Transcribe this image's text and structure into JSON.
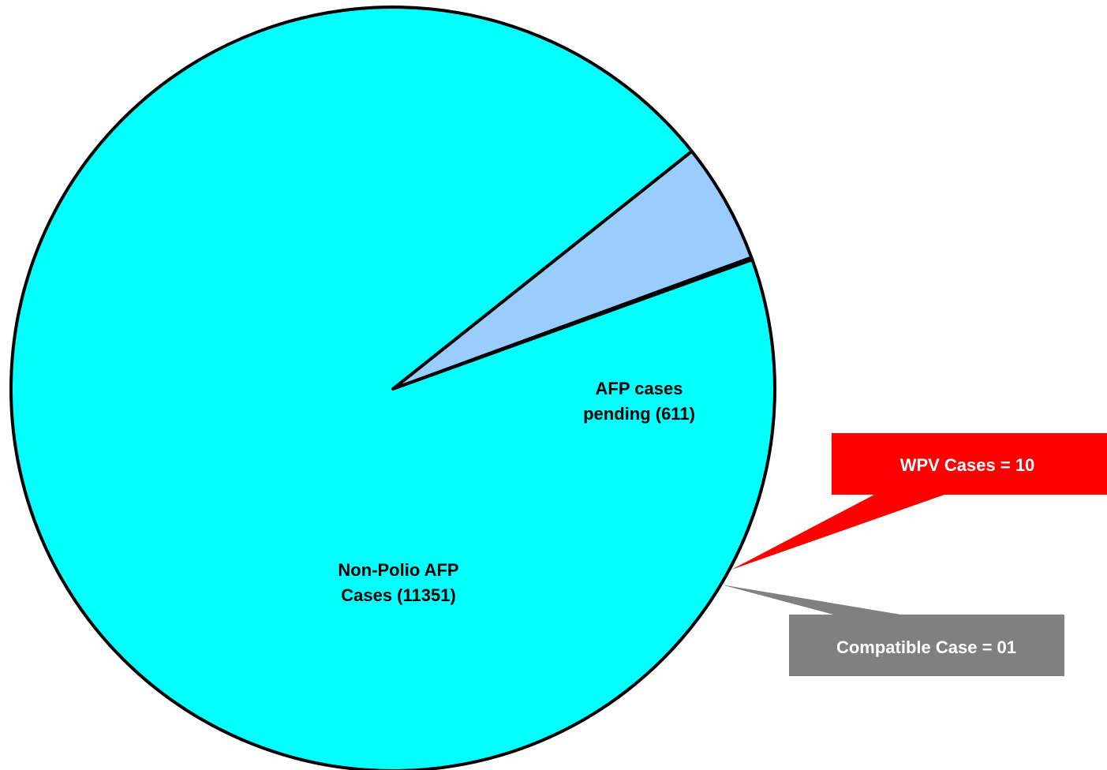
{
  "chart_data": {
    "type": "pie",
    "title": "",
    "slices": [
      {
        "label_lines": [
          "AFP cases",
          "pending (611)"
        ],
        "value": 611,
        "color": "#99CCFF"
      },
      {
        "label_lines": [
          "WPV Cases = 10"
        ],
        "value": 10,
        "color": "#FF0000"
      },
      {
        "label_lines": [
          "Compatible Case = 01"
        ],
        "value": 1,
        "color": "#808080"
      },
      {
        "label_lines": [
          "Non-Polio AFP",
          "Cases (11351)"
        ],
        "value": 11351,
        "color": "#00FFFF"
      }
    ],
    "callouts": [
      {
        "slice_index": 1,
        "text": "WPV Cases = 10",
        "box_color": "#FF0000",
        "text_color": "#FFFFFF"
      },
      {
        "slice_index": 2,
        "text": "Compatible Case = 01",
        "box_color": "#808080",
        "text_color": "#FFFFFF"
      }
    ]
  }
}
